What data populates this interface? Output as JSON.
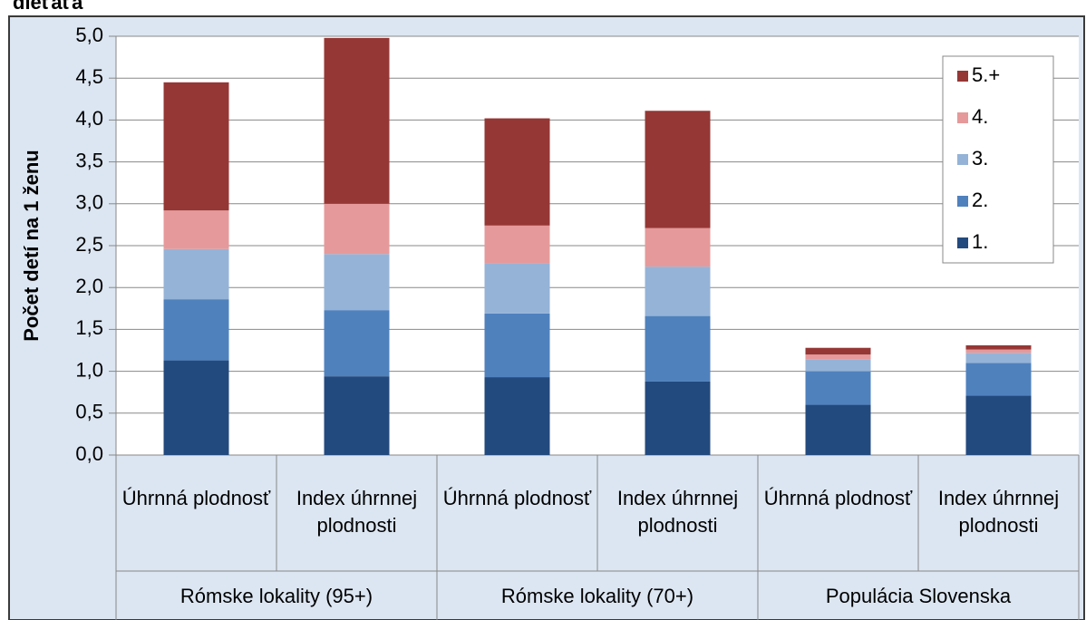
{
  "chart_data": {
    "type": "stacked_bar",
    "title": "dieťaťa",
    "y_label": "Počet detí na 1 ženu",
    "categories": [
      "Úhrnná plodnosť",
      "Index úhrnnej plodnosti",
      "Úhrnná plodnosť",
      "Index úhrnnej plodnosti",
      "Úhrnná plodnosť",
      "Index úhrnnej plodnosti"
    ],
    "groups": [
      "Rómske lokality (95+)",
      "Rómske lokality (70+)",
      "Populácia Slovenska"
    ],
    "series": [
      {
        "name": "1.",
        "color": "#234a7e",
        "values": [
          1.13,
          0.94,
          0.93,
          0.88,
          0.6,
          0.71
        ]
      },
      {
        "name": "2.",
        "color": "#4f81bd",
        "values": [
          0.73,
          0.79,
          0.76,
          0.78,
          0.4,
          0.39
        ]
      },
      {
        "name": "3.",
        "color": "#95b3d7",
        "values": [
          0.6,
          0.67,
          0.6,
          0.59,
          0.14,
          0.12
        ]
      },
      {
        "name": "4.",
        "color": "#e6999a",
        "values": [
          0.46,
          0.6,
          0.45,
          0.46,
          0.06,
          0.04
        ]
      },
      {
        "name": "5.+",
        "color": "#953735",
        "values": [
          1.53,
          1.98,
          1.28,
          1.4,
          0.08,
          0.05
        ]
      }
    ],
    "ylim": [
      0,
      5
    ],
    "yticks": [
      {
        "value": 0,
        "label": "0,0"
      },
      {
        "value": 0.5,
        "label": "0,5"
      },
      {
        "value": 1,
        "label": "1,0"
      },
      {
        "value": 1.5,
        "label": "1,5"
      },
      {
        "value": 2,
        "label": "2,0"
      },
      {
        "value": 2.5,
        "label": "2,5"
      },
      {
        "value": 3,
        "label": "3,0"
      },
      {
        "value": 3.5,
        "label": "3,5"
      },
      {
        "value": 4,
        "label": "4,0"
      },
      {
        "value": 4.5,
        "label": "4,5"
      },
      {
        "value": 5,
        "label": "5,0"
      }
    ],
    "legend": "upper right"
  }
}
